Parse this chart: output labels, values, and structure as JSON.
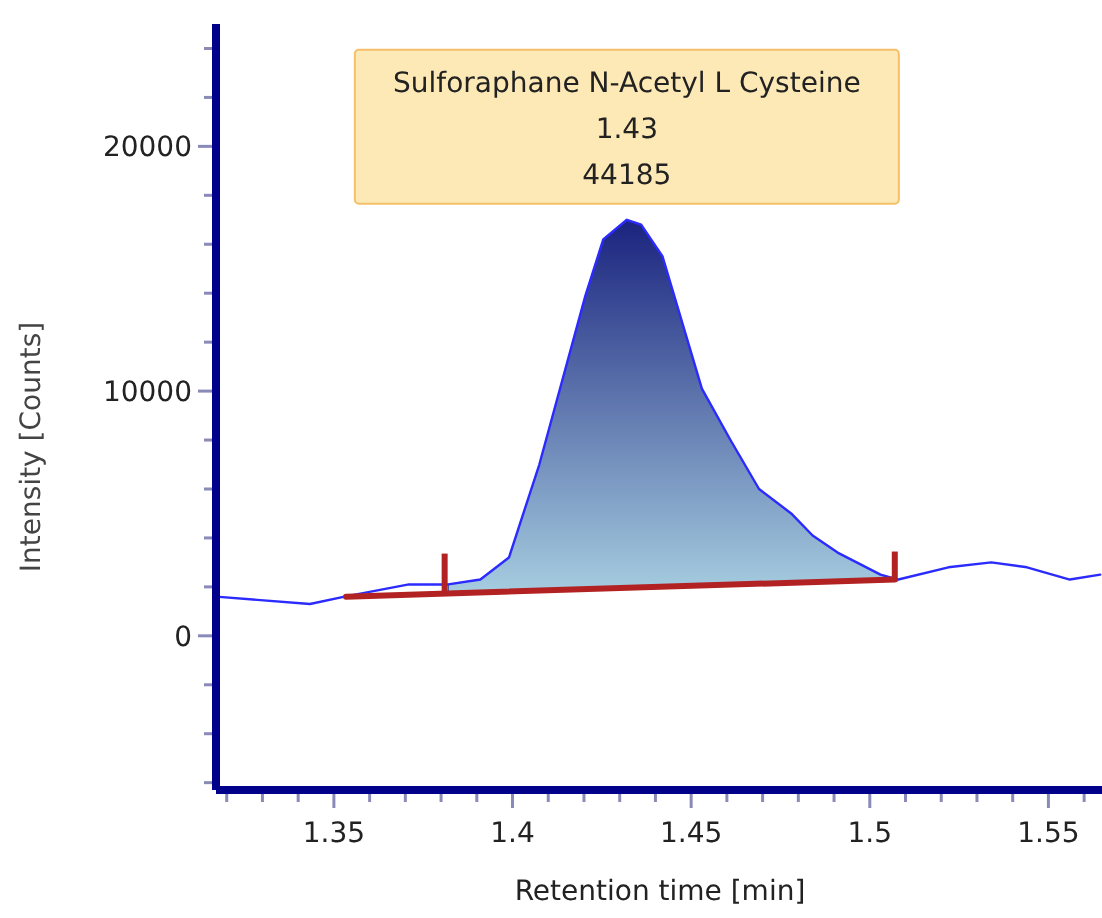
{
  "chart_data": {
    "type": "line",
    "xlabel": "Retention time [min]",
    "ylabel": "Intensity [Counts]",
    "xlim": [
      1.317,
      1.565
    ],
    "ylim": [
      -6300,
      25000
    ],
    "xticks": [
      {
        "value": 1.32,
        "label": null
      },
      {
        "value": 1.33,
        "label": null
      },
      {
        "value": 1.34,
        "label": null
      },
      1.35,
      {
        "value": 1.36,
        "label": null
      },
      {
        "value": 1.37,
        "label": null
      },
      {
        "value": 1.38,
        "label": null
      },
      {
        "value": 1.39,
        "label": null
      },
      1.4,
      {
        "value": 1.41,
        "label": null
      },
      {
        "value": 1.42,
        "label": null
      },
      {
        "value": 1.43,
        "label": null
      },
      {
        "value": 1.44,
        "label": null
      },
      1.45,
      {
        "value": 1.46,
        "label": null
      },
      {
        "value": 1.47,
        "label": null
      },
      {
        "value": 1.48,
        "label": null
      },
      {
        "value": 1.49,
        "label": null
      },
      1.5,
      {
        "value": 1.51,
        "label": null
      },
      {
        "value": 1.52,
        "label": null
      },
      {
        "value": 1.53,
        "label": null
      },
      {
        "value": 1.54,
        "label": null
      },
      1.55,
      {
        "value": 1.56,
        "label": null
      }
    ],
    "yticks": [
      {
        "value": -6000,
        "label": null
      },
      {
        "value": -4000,
        "label": null
      },
      {
        "value": -2000,
        "label": null
      },
      0,
      {
        "value": 2000,
        "label": null
      },
      {
        "value": 4000,
        "label": null
      },
      {
        "value": 6000,
        "label": null
      },
      {
        "value": 8000,
        "label": null
      },
      10000,
      {
        "value": 12000,
        "label": null
      },
      {
        "value": 14000,
        "label": null
      },
      {
        "value": 16000,
        "label": null
      },
      {
        "value": 18000,
        "label": null
      },
      20000,
      {
        "value": 22000,
        "label": null
      },
      {
        "value": 24000,
        "label": null
      }
    ],
    "grid": false,
    "legend": false,
    "marker": "none",
    "line_style": "solid",
    "series": [
      {
        "type": "area",
        "color": "#1a237e",
        "x": [
          1.382,
          1.391,
          1.399,
          1.4075,
          1.4204,
          1.4254,
          1.432,
          1.436,
          1.442,
          1.453,
          1.461,
          1.469,
          1.478,
          1.484,
          1.491,
          1.503,
          1.507
        ],
        "values": [
          2100,
          2300,
          3200,
          7000,
          13900,
          16200,
          17000,
          16800,
          15500,
          10100,
          8000,
          6000,
          5000,
          4100,
          3400,
          2500,
          2300
        ]
      },
      {
        "color": "#2b2bff",
        "x": [
          1.317,
          1.3433,
          1.353,
          1.371,
          1.382,
          1.391,
          1.399,
          1.4075,
          1.4204,
          1.4254,
          1.432,
          1.436,
          1.442,
          1.453,
          1.461,
          1.469,
          1.478,
          1.484,
          1.491,
          1.503,
          1.508,
          1.522,
          1.534,
          1.544,
          1.556,
          1.5645
        ],
        "values": [
          1600,
          1300,
          1600,
          2100,
          2100,
          2300,
          3200,
          7000,
          13900,
          16200,
          17000,
          16800,
          15500,
          10100,
          8000,
          6000,
          5000,
          4100,
          3400,
          2500,
          2300,
          2800,
          3000,
          2800,
          2300,
          2500
        ]
      },
      {
        "color": "#b22222",
        "x": [
          1.3534,
          1.507
        ],
        "values": [
          1600,
          2300
        ]
      }
    ],
    "annotations": [
      {
        "text": "Sulforaphane N-Acetyl L Cysteine\n1.43\n44185",
        "x": 1.432,
        "y": 17000
      }
    ]
  }
}
